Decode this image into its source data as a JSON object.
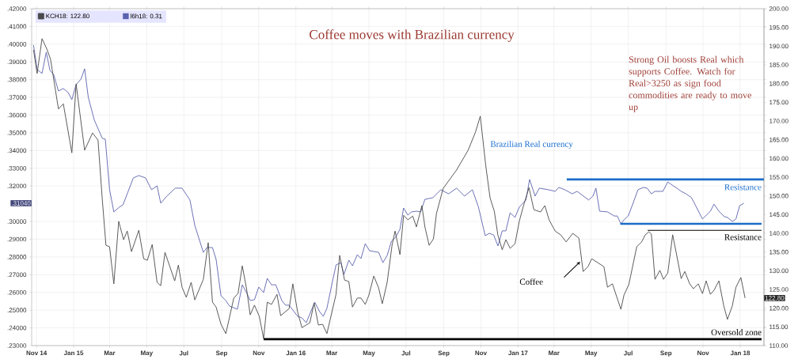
{
  "chart_data": {
    "type": "line",
    "title": "Coffee moves with Brazilian currency",
    "annotations": [
      "Strong Oil boosts Real which supports Coffee. Watch for Real>3250 as sign food commodities are ready to move up",
      "Brazilian Real currency",
      "Resistance",
      "Resistance",
      "Coffee",
      "Oversold zone",
      ".31040",
      "122.80"
    ],
    "xlim": [
      "2014-10-24",
      "2018-02-09"
    ],
    "xticks": [
      {
        "value": "2014-11-01",
        "label": "Nov 14"
      },
      {
        "value": "2015-01-01",
        "label": "Jan 15"
      },
      {
        "value": "2015-03-01",
        "label": "Mar"
      },
      {
        "value": "2015-05-01",
        "label": "May"
      },
      {
        "value": "2015-07-01",
        "label": "Jul"
      },
      {
        "value": "2015-09-01",
        "label": "Sep"
      },
      {
        "value": "2015-11-01",
        "label": "Nov"
      },
      {
        "value": "2016-01-01",
        "label": "Jan 16"
      },
      {
        "value": "2016-03-01",
        "label": "Mar"
      },
      {
        "value": "2016-05-01",
        "label": "May"
      },
      {
        "value": "2016-07-01",
        "label": "Jul"
      },
      {
        "value": "2016-09-01",
        "label": "Sep"
      },
      {
        "value": "2016-11-01",
        "label": "Nov"
      },
      {
        "value": "2017-01-01",
        "label": "Jan 17"
      },
      {
        "value": "2017-03-01",
        "label": "Mar"
      },
      {
        "value": "2017-05-01",
        "label": "May"
      },
      {
        "value": "2017-07-01",
        "label": "Jul"
      },
      {
        "value": "2017-09-01",
        "label": "Sep"
      },
      {
        "value": "2017-11-01",
        "label": "Nov"
      },
      {
        "value": "2018-01-01",
        "label": "Jan 18"
      }
    ],
    "ylim": [
      0.23,
      0.42
    ],
    "yticks": [
      {
        "value": 0.23,
        "label": ".23000"
      },
      {
        "value": 0.24,
        "label": ".24000"
      },
      {
        "value": 0.25,
        "label": ".25000"
      },
      {
        "value": 0.26,
        "label": ".26000"
      },
      {
        "value": 0.27,
        "label": ".27000"
      },
      {
        "value": 0.28,
        "label": ".28000"
      },
      {
        "value": 0.29,
        "label": ".29000"
      },
      {
        "value": 0.3,
        "label": ".30000"
      },
      {
        "value": 0.32,
        "label": ".32000"
      },
      {
        "value": 0.33,
        "label": ".33000"
      },
      {
        "value": 0.34,
        "label": ".34000"
      },
      {
        "value": 0.35,
        "label": ".35000"
      },
      {
        "value": 0.36,
        "label": ".36000"
      },
      {
        "value": 0.37,
        "label": ".37000"
      },
      {
        "value": 0.38,
        "label": ".38000"
      },
      {
        "value": 0.39,
        "label": ".39000"
      },
      {
        "value": 0.4,
        "label": ".40000"
      },
      {
        "value": 0.41,
        "label": ".41000"
      },
      {
        "value": 0.42,
        "label": ".42000"
      }
    ],
    "y2lim": [
      110,
      200
    ],
    "y2ticks": [
      {
        "value": 110,
        "label": "110.00"
      },
      {
        "value": 115,
        "label": "115.00"
      },
      {
        "value": 120,
        "label": "120.00"
      },
      {
        "value": 125,
        "label": "125.00"
      },
      {
        "value": 130,
        "label": "130.00"
      },
      {
        "value": 135,
        "label": "135.00"
      },
      {
        "value": 140,
        "label": "140.00"
      },
      {
        "value": 145,
        "label": "145.00"
      },
      {
        "value": 150,
        "label": "150.00"
      },
      {
        "value": 155,
        "label": "155.00"
      },
      {
        "value": 160,
        "label": "160.00"
      },
      {
        "value": 165,
        "label": "165.00"
      },
      {
        "value": 170,
        "label": "170.00"
      },
      {
        "value": 175,
        "label": "175.00"
      },
      {
        "value": 180,
        "label": "180.00"
      },
      {
        "value": 185,
        "label": "185.00"
      },
      {
        "value": 190,
        "label": "190.00"
      },
      {
        "value": 195,
        "label": "195.00"
      },
      {
        "value": 200,
        "label": "200.00"
      }
    ],
    "grid": true,
    "legend": "top left",
    "series": [
      {
        "name": "KCH18: 122.80",
        "color": "#4a4a4a",
        "axis": "y2",
        "x": [
          "2014-10-27",
          "2014-11-02",
          "2014-11-10",
          "2014-11-18",
          "2014-11-24",
          "2014-12-07",
          "2014-12-15",
          "2014-12-29",
          "2015-01-05",
          "2015-01-19",
          "2015-02-01",
          "2015-02-10",
          "2015-02-17",
          "2015-02-23",
          "2015-03-01",
          "2015-03-08",
          "2015-03-16",
          "2015-03-24",
          "2015-03-30",
          "2015-04-06",
          "2015-04-18",
          "2015-04-26",
          "2015-05-02",
          "2015-05-10",
          "2015-05-18",
          "2015-05-24",
          "2015-05-31",
          "2015-06-16",
          "2015-06-22",
          "2015-06-28",
          "2015-07-05",
          "2015-07-13",
          "2015-07-19",
          "2015-08-02",
          "2015-08-10",
          "2015-08-17",
          "2015-08-23",
          "2015-08-31",
          "2015-09-08",
          "2015-09-21",
          "2015-09-28",
          "2015-10-05",
          "2015-10-12",
          "2015-10-18",
          "2015-10-25",
          "2015-11-02",
          "2015-11-09",
          "2015-11-15",
          "2015-11-22",
          "2015-12-01",
          "2015-12-07",
          "2015-12-21",
          "2015-12-27",
          "2016-01-04",
          "2016-01-11",
          "2016-01-24",
          "2016-01-31",
          "2016-02-07",
          "2016-02-14",
          "2016-02-21",
          "2016-03-08",
          "2016-03-14",
          "2016-03-22",
          "2016-03-29",
          "2016-04-04",
          "2016-04-12",
          "2016-04-18",
          "2016-04-25",
          "2016-05-01",
          "2016-05-09",
          "2016-05-17",
          "2016-05-23",
          "2016-05-31",
          "2016-06-08",
          "2016-06-13",
          "2016-06-21",
          "2016-06-27",
          "2016-07-04",
          "2016-07-12",
          "2016-07-18",
          "2016-07-27",
          "2016-08-01",
          "2016-08-08",
          "2016-08-15",
          "2016-08-20",
          "2016-08-31",
          "2016-09-22",
          "2016-10-11",
          "2016-10-23",
          "2016-10-31",
          "2016-11-09",
          "2016-11-16",
          "2016-11-23",
          "2016-11-29",
          "2016-12-06",
          "2016-12-12",
          "2016-12-19",
          "2016-12-27",
          "2017-01-03",
          "2017-01-10",
          "2017-01-19",
          "2017-01-27",
          "2017-02-07",
          "2017-02-14",
          "2017-02-21",
          "2017-03-03",
          "2017-03-12",
          "2017-03-21",
          "2017-04-01",
          "2017-04-11",
          "2017-04-16",
          "2017-04-18",
          "2017-04-26",
          "2017-05-02",
          "2017-05-22",
          "2017-05-28",
          "2017-06-05",
          "2017-06-19",
          "2017-06-24",
          "2017-07-02",
          "2017-07-15",
          "2017-07-23",
          "2017-07-29",
          "2017-08-04",
          "2017-08-08",
          "2017-08-14",
          "2017-08-22",
          "2017-08-28",
          "2017-09-04",
          "2017-09-12",
          "2017-09-18",
          "2017-09-26",
          "2017-10-02",
          "2017-10-10",
          "2017-10-16",
          "2017-10-24",
          "2017-10-31",
          "2017-11-06",
          "2017-11-13",
          "2017-11-19",
          "2017-11-27",
          "2017-12-05",
          "2017-12-11",
          "2017-12-19",
          "2017-12-25",
          "2018-01-02",
          "2018-01-09"
        ],
        "values": [
          189.0,
          182.7,
          192.0,
          189.2,
          186.5,
          173.2,
          174.6,
          161.5,
          179.9,
          162.2,
          166.8,
          164.9,
          149.1,
          136.8,
          136.4,
          126.5,
          143.2,
          138.3,
          140.6,
          135.1,
          140.8,
          133.2,
          132.8,
          137.0,
          126.9,
          126.0,
          134.9,
          127.3,
          131.5,
          125.6,
          122.9,
          126.9,
          122.2,
          127.7,
          137.5,
          121.6,
          120.3,
          115.7,
          113.2,
          122.7,
          123.9,
          131.3,
          125.2,
          118.2,
          120.8,
          117.8,
          111.9,
          121.6,
          121.0,
          123.7,
          118.0,
          119.9,
          126.5,
          118.9,
          114.8,
          116.1,
          121.4,
          115.5,
          115.7,
          113.2,
          123.7,
          134.1,
          127.5,
          127.1,
          120.3,
          122.7,
          122.7,
          121.0,
          123.5,
          128.6,
          125.4,
          121.2,
          126.9,
          136.8,
          140.6,
          134.3,
          144.8,
          143.6,
          144.6,
          141.7,
          147.4,
          141.7,
          136.8,
          138.5,
          145.3,
          152.0,
          156.9,
          162.2,
          167.0,
          171.3,
          158.0,
          149.5,
          145.9,
          139.4,
          135.6,
          138.3,
          136.0,
          137.2,
          143.2,
          147.4,
          152.2,
          146.3,
          145.7,
          147.4,
          143.6,
          140.6,
          139.6,
          137.7,
          140.0,
          138.7,
          132.2,
          129.8,
          131.1,
          133.2,
          131.1,
          125.6,
          126.5,
          119.7,
          123.5,
          126.3,
          136.4,
          137.7,
          139.6,
          140.4,
          139.8,
          127.7,
          130.1,
          127.7,
          129.4,
          139.6,
          134.7,
          127.9,
          129.8,
          126.5,
          125.2,
          126.5,
          123.9,
          127.3,
          123.7,
          124.8,
          127.3,
          120.6,
          117.0,
          120.6,
          125.6,
          128.2,
          122.7
        ]
      },
      {
        "name": "l6h18: 0.31",
        "color": "#5b62ad",
        "x": [
          "2014-10-27",
          "2014-11-02",
          "2014-11-10",
          "2014-11-17",
          "2014-11-23",
          "2014-11-29",
          "2014-12-07",
          "2014-12-15",
          "2014-12-23",
          "2014-12-29",
          "2015-01-05",
          "2015-01-13",
          "2015-01-19",
          "2015-01-25",
          "2015-02-04",
          "2015-02-17",
          "2015-02-22",
          "2015-03-01",
          "2015-03-08",
          "2015-03-17",
          "2015-03-23",
          "2015-03-31",
          "2015-04-09",
          "2015-04-18",
          "2015-04-29",
          "2015-05-09",
          "2015-05-18",
          "2015-05-24",
          "2015-06-03",
          "2015-06-17",
          "2015-06-28",
          "2015-07-11",
          "2015-07-19",
          "2015-08-02",
          "2015-08-08",
          "2015-08-17",
          "2015-08-23",
          "2015-08-31",
          "2015-09-08",
          "2015-09-14",
          "2015-09-27",
          "2015-10-05",
          "2015-10-12",
          "2015-10-18",
          "2015-10-25",
          "2015-11-01",
          "2015-11-09",
          "2015-11-15",
          "2015-11-22",
          "2015-11-29",
          "2015-12-09",
          "2015-12-15",
          "2015-12-21",
          "2016-01-04",
          "2016-01-11",
          "2016-01-18",
          "2016-02-01",
          "2016-02-09",
          "2016-02-15",
          "2016-02-21",
          "2016-03-01",
          "2016-03-08",
          "2016-03-16",
          "2016-03-21",
          "2016-03-29",
          "2016-04-04",
          "2016-04-12",
          "2016-04-18",
          "2016-04-25",
          "2016-05-02",
          "2016-05-17",
          "2016-05-24",
          "2016-05-31",
          "2016-06-07",
          "2016-06-14",
          "2016-06-21",
          "2016-06-27",
          "2016-07-04",
          "2016-07-10",
          "2016-07-18",
          "2016-07-25",
          "2016-08-01",
          "2016-08-14",
          "2016-08-27",
          "2016-09-09",
          "2016-09-22",
          "2016-10-05",
          "2016-10-18",
          "2016-10-28",
          "2016-11-08",
          "2016-11-15",
          "2016-11-22",
          "2016-11-29",
          "2016-12-06",
          "2016-12-12",
          "2016-12-19",
          "2016-12-27",
          "2017-01-03",
          "2017-01-14",
          "2017-01-20",
          "2017-01-29",
          "2017-02-05",
          "2017-02-20",
          "2017-03-03",
          "2017-03-09",
          "2017-03-19",
          "2017-03-31",
          "2017-04-08",
          "2017-04-17",
          "2017-04-27",
          "2017-05-04",
          "2017-05-09",
          "2017-05-15",
          "2017-05-28",
          "2017-06-08",
          "2017-06-13",
          "2017-06-19",
          "2017-06-24",
          "2017-07-01",
          "2017-07-09",
          "2017-07-17",
          "2017-07-26",
          "2017-08-01",
          "2017-08-08",
          "2017-08-14",
          "2017-08-27",
          "2017-09-04",
          "2017-09-13",
          "2017-09-19",
          "2017-09-26",
          "2017-10-04",
          "2017-10-13",
          "2017-10-31",
          "2017-11-13",
          "2017-11-19",
          "2017-11-27",
          "2017-12-06",
          "2017-12-11",
          "2017-12-19",
          "2017-12-25",
          "2017-12-31",
          "2018-01-07"
        ],
        "values": [
          0.3995,
          0.3857,
          0.3835,
          0.3955,
          0.3852,
          0.383,
          0.3736,
          0.375,
          0.3727,
          0.3687,
          0.3772,
          0.3803,
          0.3861,
          0.37,
          0.3571,
          0.3469,
          0.3464,
          0.3179,
          0.3054,
          0.3081,
          0.3094,
          0.3165,
          0.3246,
          0.3259,
          0.3246,
          0.3179,
          0.3201,
          0.3103,
          0.3143,
          0.3188,
          0.3188,
          0.3121,
          0.2978,
          0.2826,
          0.2853,
          0.2853,
          0.2786,
          0.2581,
          0.2554,
          0.2523,
          0.2505,
          0.2643,
          0.2599,
          0.2554,
          0.2559,
          0.263,
          0.2599,
          0.2679,
          0.2643,
          0.2643,
          0.2554,
          0.2528,
          0.2528,
          0.2465,
          0.2456,
          0.2429,
          0.2545,
          0.2492,
          0.2465,
          0.251,
          0.2643,
          0.2755,
          0.2768,
          0.2701,
          0.2782,
          0.275,
          0.2813,
          0.2791,
          0.2875,
          0.2835,
          0.2826,
          0.2768,
          0.2808,
          0.2889,
          0.2911,
          0.2956,
          0.3076,
          0.3036,
          0.3054,
          0.3058,
          0.3054,
          0.3125,
          0.3134,
          0.3179,
          0.3156,
          0.3188,
          0.3143,
          0.3179,
          0.3081,
          0.292,
          0.2933,
          0.2924,
          0.2862,
          0.2947,
          0.2947,
          0.3049,
          0.3023,
          0.3081,
          0.3121,
          0.3237,
          0.3143,
          0.3188,
          0.3179,
          0.317,
          0.3192,
          0.3179,
          0.3156,
          0.317,
          0.3147,
          0.3121,
          0.3143,
          0.3188,
          0.3058,
          0.3054,
          0.3031,
          0.3031,
          0.2987,
          0.3009,
          0.3031,
          0.3103,
          0.3179,
          0.3192,
          0.3188,
          0.3156,
          0.317,
          0.317,
          0.3223,
          0.3201,
          0.3188,
          0.317,
          0.3156,
          0.3134,
          0.3014,
          0.3058,
          0.3098,
          0.3058,
          0.3027,
          0.3023,
          0.3,
          0.3014,
          0.3089,
          0.3103
        ]
      },
      {
        "color": "#1c6cc8",
        "x": [
          "2017-03-22",
          "2018-02-09"
        ],
        "values": [
          0.3237,
          0.3237
        ]
      },
      {
        "color": "#1c6cc8",
        "x": [
          "2017-06-18",
          "2018-02-05"
        ],
        "values": [
          0.2987,
          0.2987
        ]
      },
      {
        "color": "#000000",
        "axis": "y2",
        "x": [
          "2017-08-02",
          "2018-02-05"
        ],
        "values": [
          140.8,
          140.8
        ]
      },
      {
        "color": "#000000",
        "axis": "y2",
        "x": [
          "2015-11-09",
          "2018-02-05"
        ],
        "values": [
          111.7,
          111.7
        ]
      }
    ]
  }
}
